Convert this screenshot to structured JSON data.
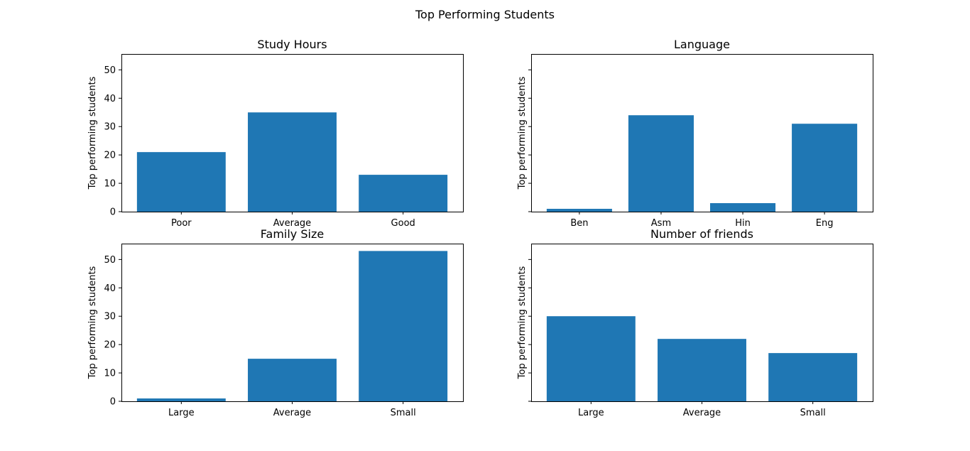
{
  "figure": {
    "suptitle": "Top Performing Students",
    "bar_color": "#1f77b4"
  },
  "chart_data": [
    {
      "type": "bar",
      "title": "Study Hours",
      "categories": [
        "Poor",
        "Average",
        "Good"
      ],
      "values": [
        21,
        35,
        13
      ],
      "ylabel": "Top performing students",
      "ylim": [
        0,
        55.6
      ],
      "yticks": [
        0,
        10,
        20,
        30,
        40,
        50
      ],
      "ytick_labels_visible": true,
      "grid": false
    },
    {
      "type": "bar",
      "title": "Language",
      "categories": [
        "Ben",
        "Asm",
        "Hin",
        "Eng"
      ],
      "values": [
        1,
        34,
        3,
        31
      ],
      "ylabel": "Top performing students",
      "ylim": [
        0,
        55.6
      ],
      "yticks": [
        0,
        10,
        20,
        30,
        40,
        50
      ],
      "ytick_labels_visible": false,
      "grid": false
    },
    {
      "type": "bar",
      "title": "Family Size",
      "categories": [
        "Large",
        "Average",
        "Small"
      ],
      "values": [
        1,
        15,
        53
      ],
      "ylabel": "Top performing students",
      "ylim": [
        0,
        55.6
      ],
      "yticks": [
        0,
        10,
        20,
        30,
        40,
        50
      ],
      "ytick_labels_visible": true,
      "grid": false
    },
    {
      "type": "bar",
      "title": "Number of friends",
      "categories": [
        "Large",
        "Average",
        "Small"
      ],
      "values": [
        30,
        22,
        17
      ],
      "ylabel": "Top performing students",
      "ylim": [
        0,
        55.6
      ],
      "yticks": [
        0,
        10,
        20,
        30,
        40,
        50
      ],
      "ytick_labels_visible": false,
      "grid": false
    }
  ]
}
